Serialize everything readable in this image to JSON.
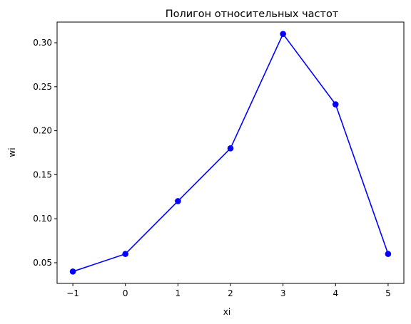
{
  "chart_data": {
    "type": "line",
    "title": "Полигон относительных частот",
    "xlabel": "xi",
    "ylabel": "wi",
    "x": [
      -1,
      0,
      1,
      2,
      3,
      4,
      5
    ],
    "series": [
      {
        "values": [
          0.04,
          0.06,
          0.12,
          0.18,
          0.31,
          0.23,
          0.06
        ],
        "color": "#0000ff",
        "marker": "circle"
      }
    ],
    "xlim": [
      -1.3,
      5.3
    ],
    "ylim": [
      0.0265,
      0.3235
    ],
    "xticks": [
      -1,
      0,
      1,
      2,
      3,
      4,
      5
    ],
    "xtick_labels": [
      "−1",
      "0",
      "1",
      "2",
      "3",
      "4",
      "5"
    ],
    "yticks": [
      0.05,
      0.1,
      0.15,
      0.2,
      0.25,
      0.3
    ],
    "ytick_labels": [
      "0.05",
      "0.10",
      "0.15",
      "0.20",
      "0.25",
      "0.30"
    ],
    "grid": false,
    "legend": "none"
  }
}
